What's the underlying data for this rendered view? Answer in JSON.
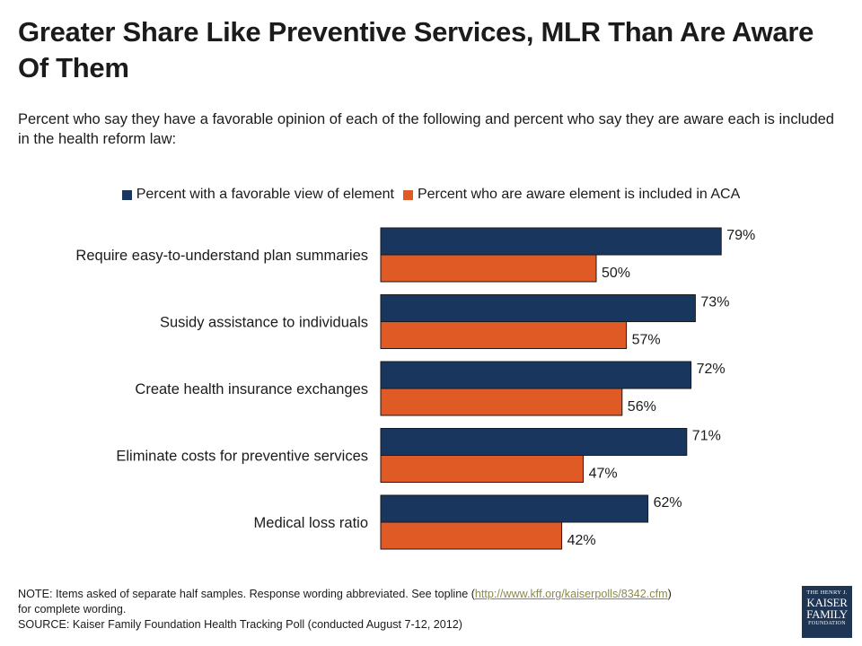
{
  "header": {
    "title": "Greater Share Like Preventive Services, MLR Than Are Aware Of Them",
    "subtitle": "Percent who say they have a favorable opinion of each of the following and percent who say they are aware each is included in the health reform law:"
  },
  "legend": [
    {
      "label": "Percent with a favorable view of element",
      "color": "#18365e"
    },
    {
      "label": "Percent who are aware element is included in ACA",
      "color": "#e05a26"
    }
  ],
  "chart_data": {
    "type": "bar",
    "orientation": "horizontal",
    "categories": [
      "Require easy-to-understand plan summaries",
      "Susidy assistance to individuals",
      "Create health insurance exchanges",
      "Eliminate costs for preventive services",
      "Medical loss ratio"
    ],
    "series": [
      {
        "name": "Percent with a favorable view of element",
        "values": [
          79,
          73,
          72,
          71,
          62
        ],
        "color": "#18365e"
      },
      {
        "name": "Percent who are aware element is included in ACA",
        "values": [
          50,
          57,
          56,
          47,
          42
        ],
        "color": "#e05a26"
      }
    ],
    "value_suffix": "%",
    "xlim": [
      0,
      100
    ],
    "grid": false,
    "legend_position": "top"
  },
  "footer": {
    "note_prefix": "NOTE: Items asked of separate half samples. Response wording abbreviated. See topline (",
    "note_link": "http://www.kff.org/kaiserpolls/8342.cfm",
    "note_suffix": ")",
    "note_line2": "for complete wording.",
    "source": "SOURCE: Kaiser Family Foundation Health Tracking Poll (conducted August 7-12, 2012)"
  },
  "logo": {
    "line1": "THE HENRY J.",
    "line2": "KAISER",
    "line3": "FAMILY",
    "line4": "FOUNDATION",
    "color": "#1e3554"
  }
}
